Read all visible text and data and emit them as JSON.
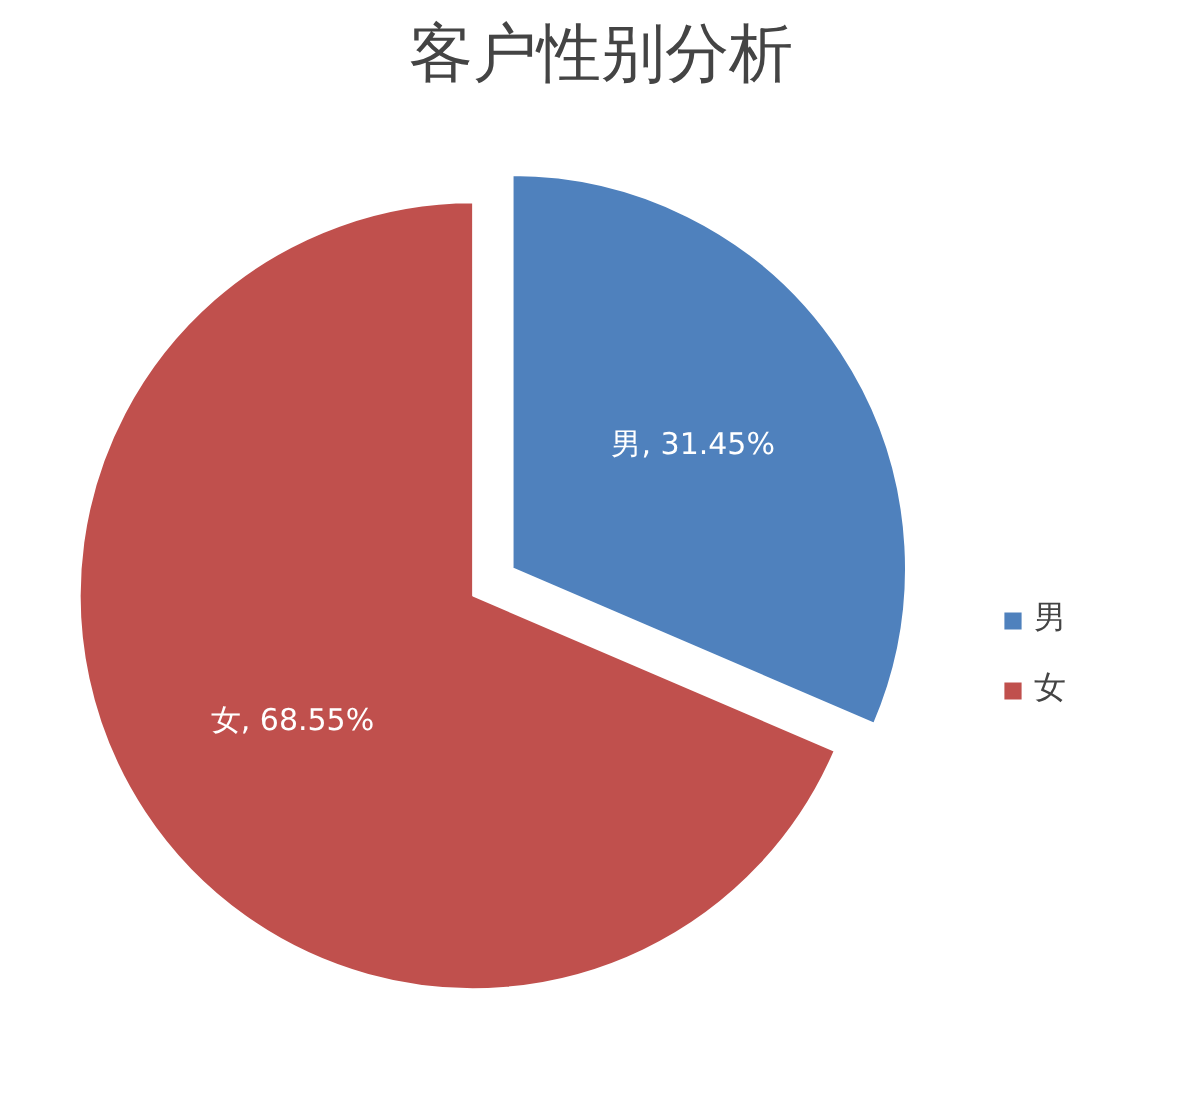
{
  "chart_data": {
    "type": "pie",
    "title": "客户性别分析",
    "categories": [
      "男",
      "女"
    ],
    "values": [
      31.45,
      68.55
    ],
    "colors": [
      "#4f81bd",
      "#c0504d"
    ],
    "value_labels": [
      "男, 31.45%",
      "女, 68.55%"
    ],
    "legend": "right"
  }
}
